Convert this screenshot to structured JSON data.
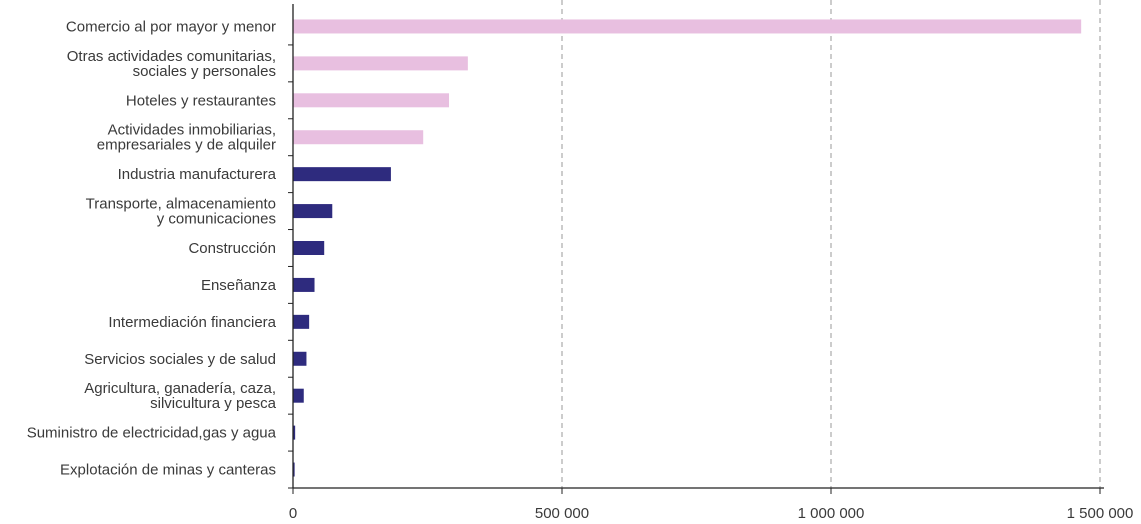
{
  "chart_data": {
    "type": "bar",
    "orientation": "horizontal",
    "title": "",
    "categories": [
      "Comercio al por mayor y menor",
      "Otras actividades comunitarias,\nsociales y personales",
      "Hoteles y restaurantes",
      "Actividades inmobiliarias,\nempresariales y de alquiler",
      "Industria manufacturera",
      "Transporte, almacenamiento\ny comunicaciones",
      "Construcción",
      "Enseñanza",
      "Intermediación financiera",
      "Servicios sociales y de salud",
      "Agricultura, ganadería, caza,\nsilvicultura y pesca",
      "Suministro de electricidad,gas y agua",
      "Explotación de minas y canteras"
    ],
    "values": [
      1465000,
      325000,
      290000,
      242000,
      182000,
      73000,
      58000,
      40000,
      30000,
      25000,
      20000,
      4000,
      3000
    ],
    "bar_colors": [
      "#e8bfe0",
      "#e8bfe0",
      "#e8bfe0",
      "#e8bfe0",
      "#2e2b7e",
      "#2e2b7e",
      "#2e2b7e",
      "#2e2b7e",
      "#2e2b7e",
      "#2e2b7e",
      "#2e2b7e",
      "#2e2b7e",
      "#2e2b7e"
    ],
    "xlim": [
      0,
      1500000
    ],
    "xticks": [
      0,
      500000,
      1000000,
      1500000
    ],
    "xtick_labels": [
      "0",
      "500 000",
      "1 000 000",
      "1 500 000"
    ],
    "grid": "vertical dashed",
    "xlabel": "",
    "ylabel": ""
  }
}
